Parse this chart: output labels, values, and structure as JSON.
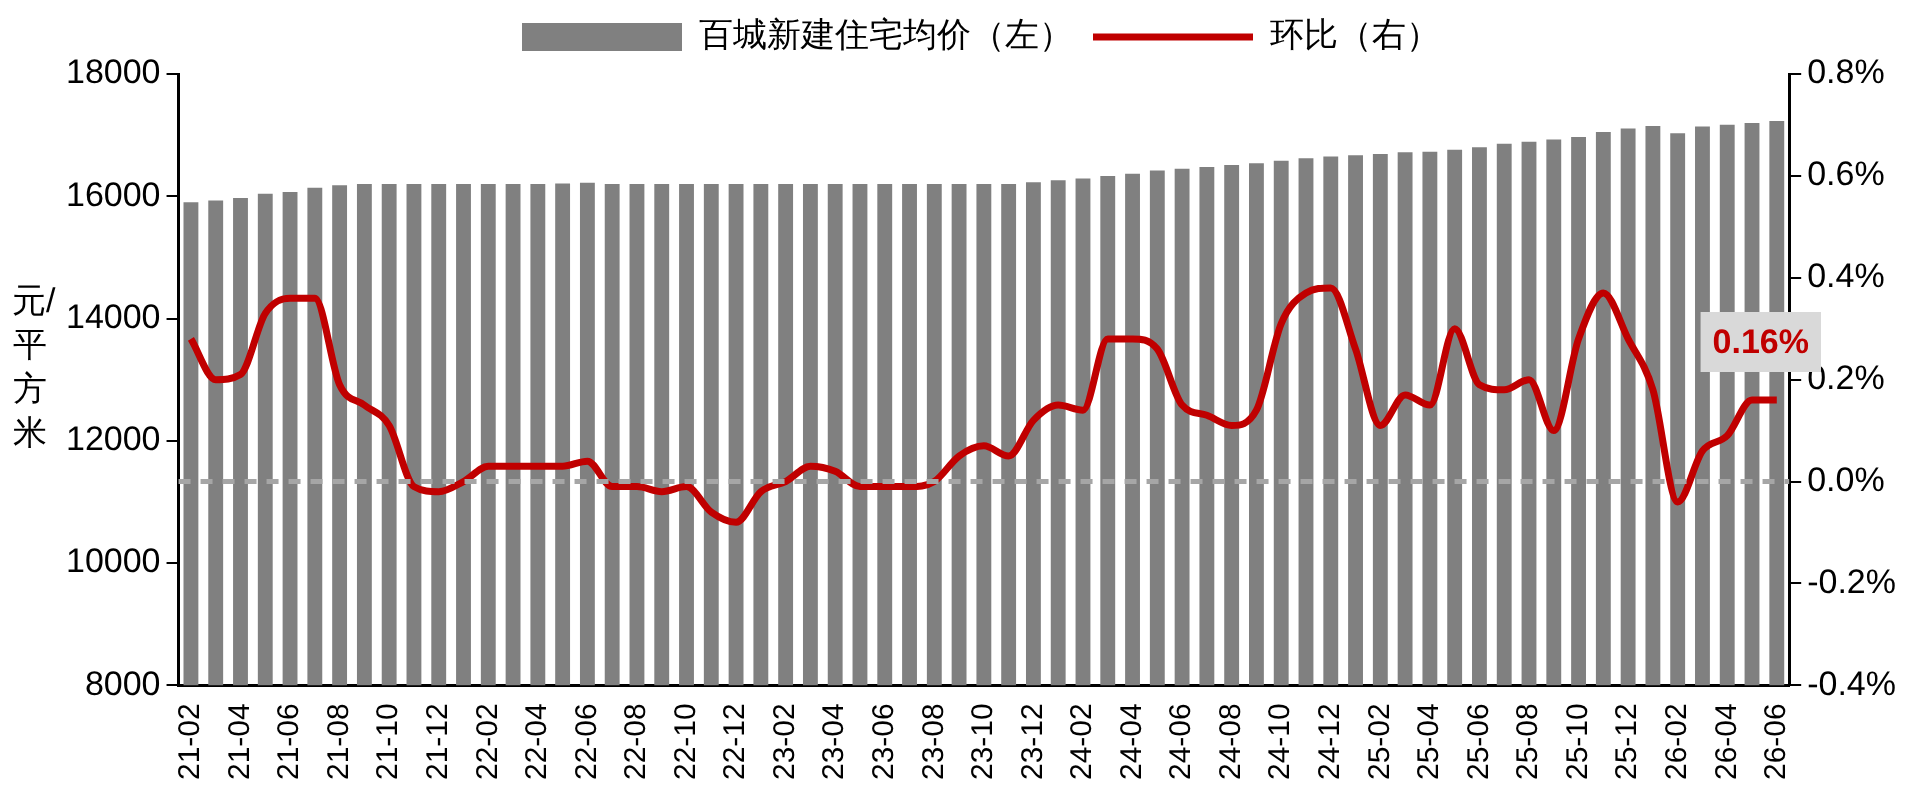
{
  "chart_data": {
    "type": "bar",
    "categories": [
      "21-02",
      null,
      "21-04",
      null,
      "21-06",
      null,
      "21-08",
      null,
      "21-10",
      null,
      "21-12",
      null,
      "22-02",
      null,
      "22-04",
      null,
      "22-06",
      null,
      "22-08",
      null,
      "22-10",
      null,
      "22-12",
      null,
      "23-02",
      null,
      "23-04",
      null,
      "23-06",
      null,
      "23-08",
      null,
      "23-10",
      null,
      "23-12",
      null,
      "24-02",
      null,
      "24-04",
      null,
      "24-06",
      null,
      "24-08",
      null,
      "24-10",
      null,
      "24-12",
      null,
      "25-02",
      null,
      "25-04",
      null,
      "25-06",
      null,
      "25-08",
      null,
      "25-10",
      null,
      "25-12",
      null,
      "26-02",
      null,
      "26-04",
      null,
      "26-06"
    ],
    "series": [
      {
        "name": "百城新建住宅均价（左）",
        "color": "#808080",
        "values": [
          15900,
          15930,
          15970,
          16040,
          16070,
          16140,
          16180,
          16200,
          16200,
          16200,
          16200,
          16200,
          16200,
          16200,
          16200,
          16210,
          16220,
          16200,
          16200,
          16200,
          16200,
          16200,
          16200,
          16200,
          16200,
          16200,
          16200,
          16200,
          16200,
          16200,
          16200,
          16200,
          16200,
          16200,
          16230,
          16260,
          16290,
          16330,
          16370,
          16420,
          16450,
          16480,
          16510,
          16540,
          16580,
          16620,
          16650,
          16670,
          16690,
          16720,
          16730,
          16760,
          16800,
          16860,
          16890,
          16930,
          16970,
          17050,
          17110,
          17150,
          17030,
          17140,
          17170,
          17200,
          17230
        ]
      },
      {
        "name": "环比（右）",
        "type": "line",
        "axis": "y2",
        "color": "#c00000",
        "values": [
          0.28,
          0.2,
          0.21,
          0.33,
          0.36,
          0.36,
          0.19,
          0.15,
          0.11,
          -0.01,
          -0.02,
          0.0,
          0.03,
          0.03,
          0.03,
          0.03,
          0.04,
          -0.01,
          -0.01,
          -0.02,
          -0.01,
          -0.06,
          -0.08,
          -0.02,
          0.0,
          0.03,
          0.02,
          -0.01,
          -0.01,
          -0.01,
          0.0,
          0.05,
          0.07,
          0.05,
          0.12,
          0.15,
          0.14,
          0.28,
          0.28,
          0.26,
          0.15,
          0.13,
          0.11,
          0.14,
          0.31,
          0.37,
          0.38,
          0.26,
          0.11,
          0.17,
          0.15,
          0.3,
          0.19,
          0.18,
          0.2,
          0.1,
          0.28,
          0.37,
          0.28,
          0.18,
          -0.04,
          0.06,
          0.09,
          0.16,
          0.16
        ]
      }
    ],
    "ylabel": "元/平方米",
    "ylim": [
      8000,
      18000
    ],
    "yticks": [
      8000,
      10000,
      12000,
      14000,
      16000,
      18000
    ],
    "y2lim": [
      -0.4,
      0.8
    ],
    "y2ticks": [
      {
        "value": -0.4,
        "label": "-0.4%"
      },
      {
        "value": -0.2,
        "label": "-0.2%"
      },
      {
        "value": 0,
        "label": "0.0%"
      },
      {
        "value": 0.2,
        "label": "0.2%"
      },
      {
        "value": 0.4,
        "label": "0.4%"
      },
      {
        "value": 0.6,
        "label": "0.6%"
      },
      {
        "value": 0.8,
        "label": "0.8%"
      }
    ],
    "ref_lines": [
      {
        "axis": "y2",
        "value": 0,
        "color": "#a6a6a6",
        "line_style": "dashed"
      }
    ],
    "annotations": [
      "0.16%"
    ],
    "grid": false,
    "legend": "top",
    "marker": "none",
    "line_style": "solid"
  }
}
